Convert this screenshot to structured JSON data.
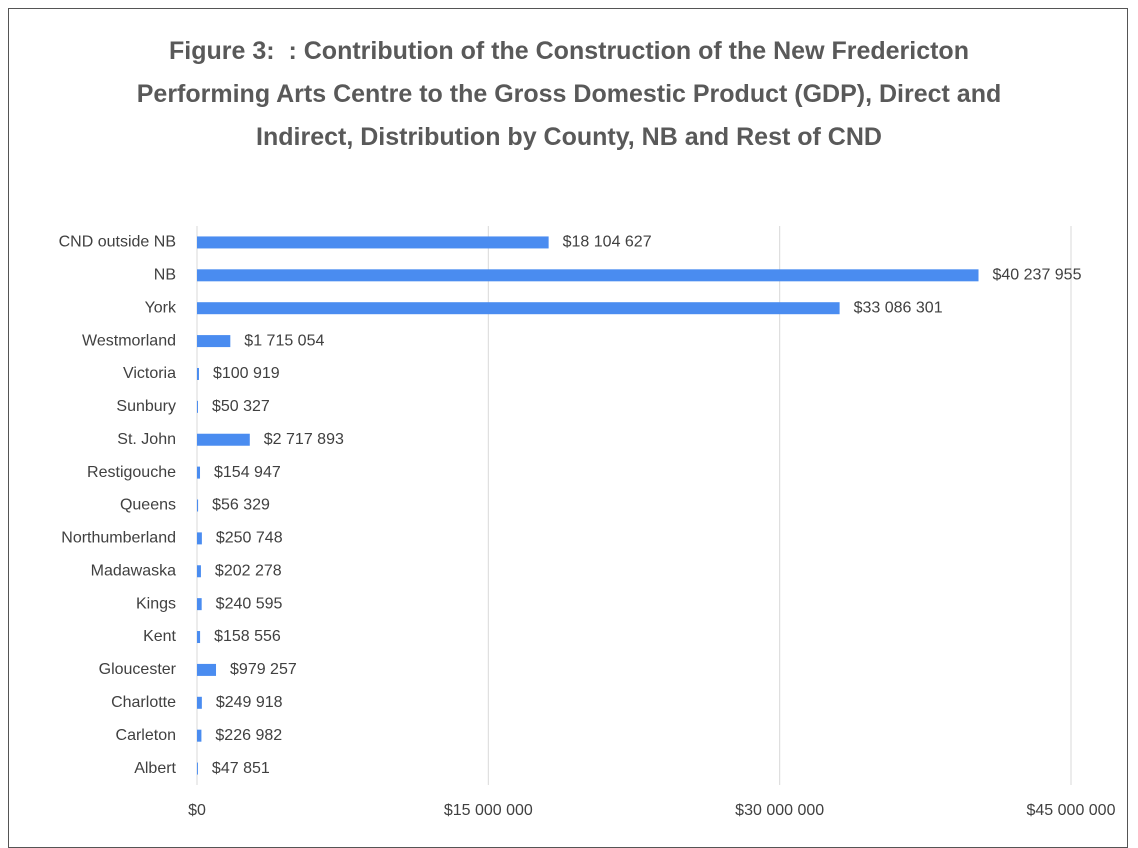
{
  "chart_data": {
    "type": "bar",
    "orientation": "horizontal",
    "title": "Figure 3:  : Contribution of the Construction of the New Fredericton Performing Arts Centre to the Gross Domestic Product (GDP), Direct and Indirect, Distribution by County, NB and Rest of CND",
    "categories": [
      "CND outside NB",
      "NB",
      "York",
      "Westmorland",
      "Victoria",
      "Sunbury",
      "St. John",
      "Restigouche",
      "Queens",
      "Northumberland",
      "Madawaska",
      "Kings",
      "Kent",
      "Gloucester",
      "Charlotte",
      "Carleton",
      "Albert"
    ],
    "values": [
      18104627,
      40237955,
      33086301,
      1715054,
      100919,
      50327,
      2717893,
      154947,
      56329,
      250748,
      202278,
      240595,
      158556,
      979257,
      249918,
      226982,
      47851
    ],
    "value_labels": [
      "$18 104 627",
      "$40 237 955",
      "$33 086 301",
      "$1 715 054",
      "$100 919",
      "$50 327",
      "$2 717 893",
      "$154 947",
      "$56 329",
      "$250 748",
      "$202 278",
      "$240 595",
      "$158 556",
      "$979 257",
      "$249 918",
      "$226 982",
      "$47 851"
    ],
    "color": "#4a8cf0",
    "xlim": [
      0,
      45000000
    ],
    "xticks": [
      {
        "value": 0,
        "label": "$0"
      },
      {
        "value": 15000000,
        "label": "$15 000 000"
      },
      {
        "value": 30000000,
        "label": "$30 000 000"
      },
      {
        "value": 45000000,
        "label": "$45 000 000"
      }
    ],
    "grid": true
  }
}
